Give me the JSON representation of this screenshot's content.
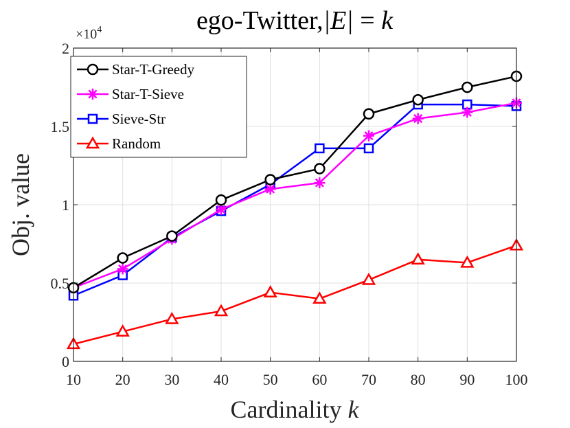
{
  "chart_data": {
    "type": "line",
    "title": "ego-Twitter,|E| = k",
    "title_parts": {
      "prefix": "ego-Twitter,",
      "set": "|E|",
      "eq": " = ",
      "var": "k"
    },
    "xlabel": "Cardinality k",
    "xlabel_parts": {
      "text": "Cardinality ",
      "var": "k"
    },
    "ylabel": "Obj. value",
    "y_multiplier": "×10^4",
    "y_multiplier_parts": {
      "base": "×10",
      "exp": "4"
    },
    "xlim": [
      10,
      100
    ],
    "ylim": [
      0,
      2
    ],
    "x": [
      10,
      20,
      30,
      40,
      50,
      60,
      70,
      80,
      90,
      100
    ],
    "xticks": [
      10,
      20,
      30,
      40,
      50,
      60,
      70,
      80,
      90,
      100
    ],
    "yticks": [
      0,
      0.5,
      1,
      1.5,
      2
    ],
    "ytick_labels": [
      "0",
      "0.5",
      "1",
      "1.5",
      "2"
    ],
    "grid": true,
    "legend_position": "top-left",
    "series": [
      {
        "name": "Star-T-Greedy",
        "color": "#000000",
        "marker": "circle",
        "values": [
          0.47,
          0.66,
          0.8,
          1.03,
          1.16,
          1.23,
          1.58,
          1.67,
          1.75,
          1.82
        ]
      },
      {
        "name": "Star-T-Sieve",
        "color": "#ff00ff",
        "marker": "asterisk",
        "values": [
          0.47,
          0.59,
          0.78,
          0.97,
          1.1,
          1.14,
          1.44,
          1.55,
          1.59,
          1.65
        ]
      },
      {
        "name": "Sieve-Str",
        "color": "#0000ff",
        "marker": "square",
        "values": [
          0.42,
          0.55,
          0.79,
          0.96,
          1.13,
          1.36,
          1.36,
          1.64,
          1.64,
          1.63
        ]
      },
      {
        "name": "Random",
        "color": "#ff0000",
        "marker": "triangle",
        "values": [
          0.11,
          0.19,
          0.27,
          0.32,
          0.44,
          0.4,
          0.52,
          0.65,
          0.63,
          0.74
        ]
      }
    ]
  }
}
